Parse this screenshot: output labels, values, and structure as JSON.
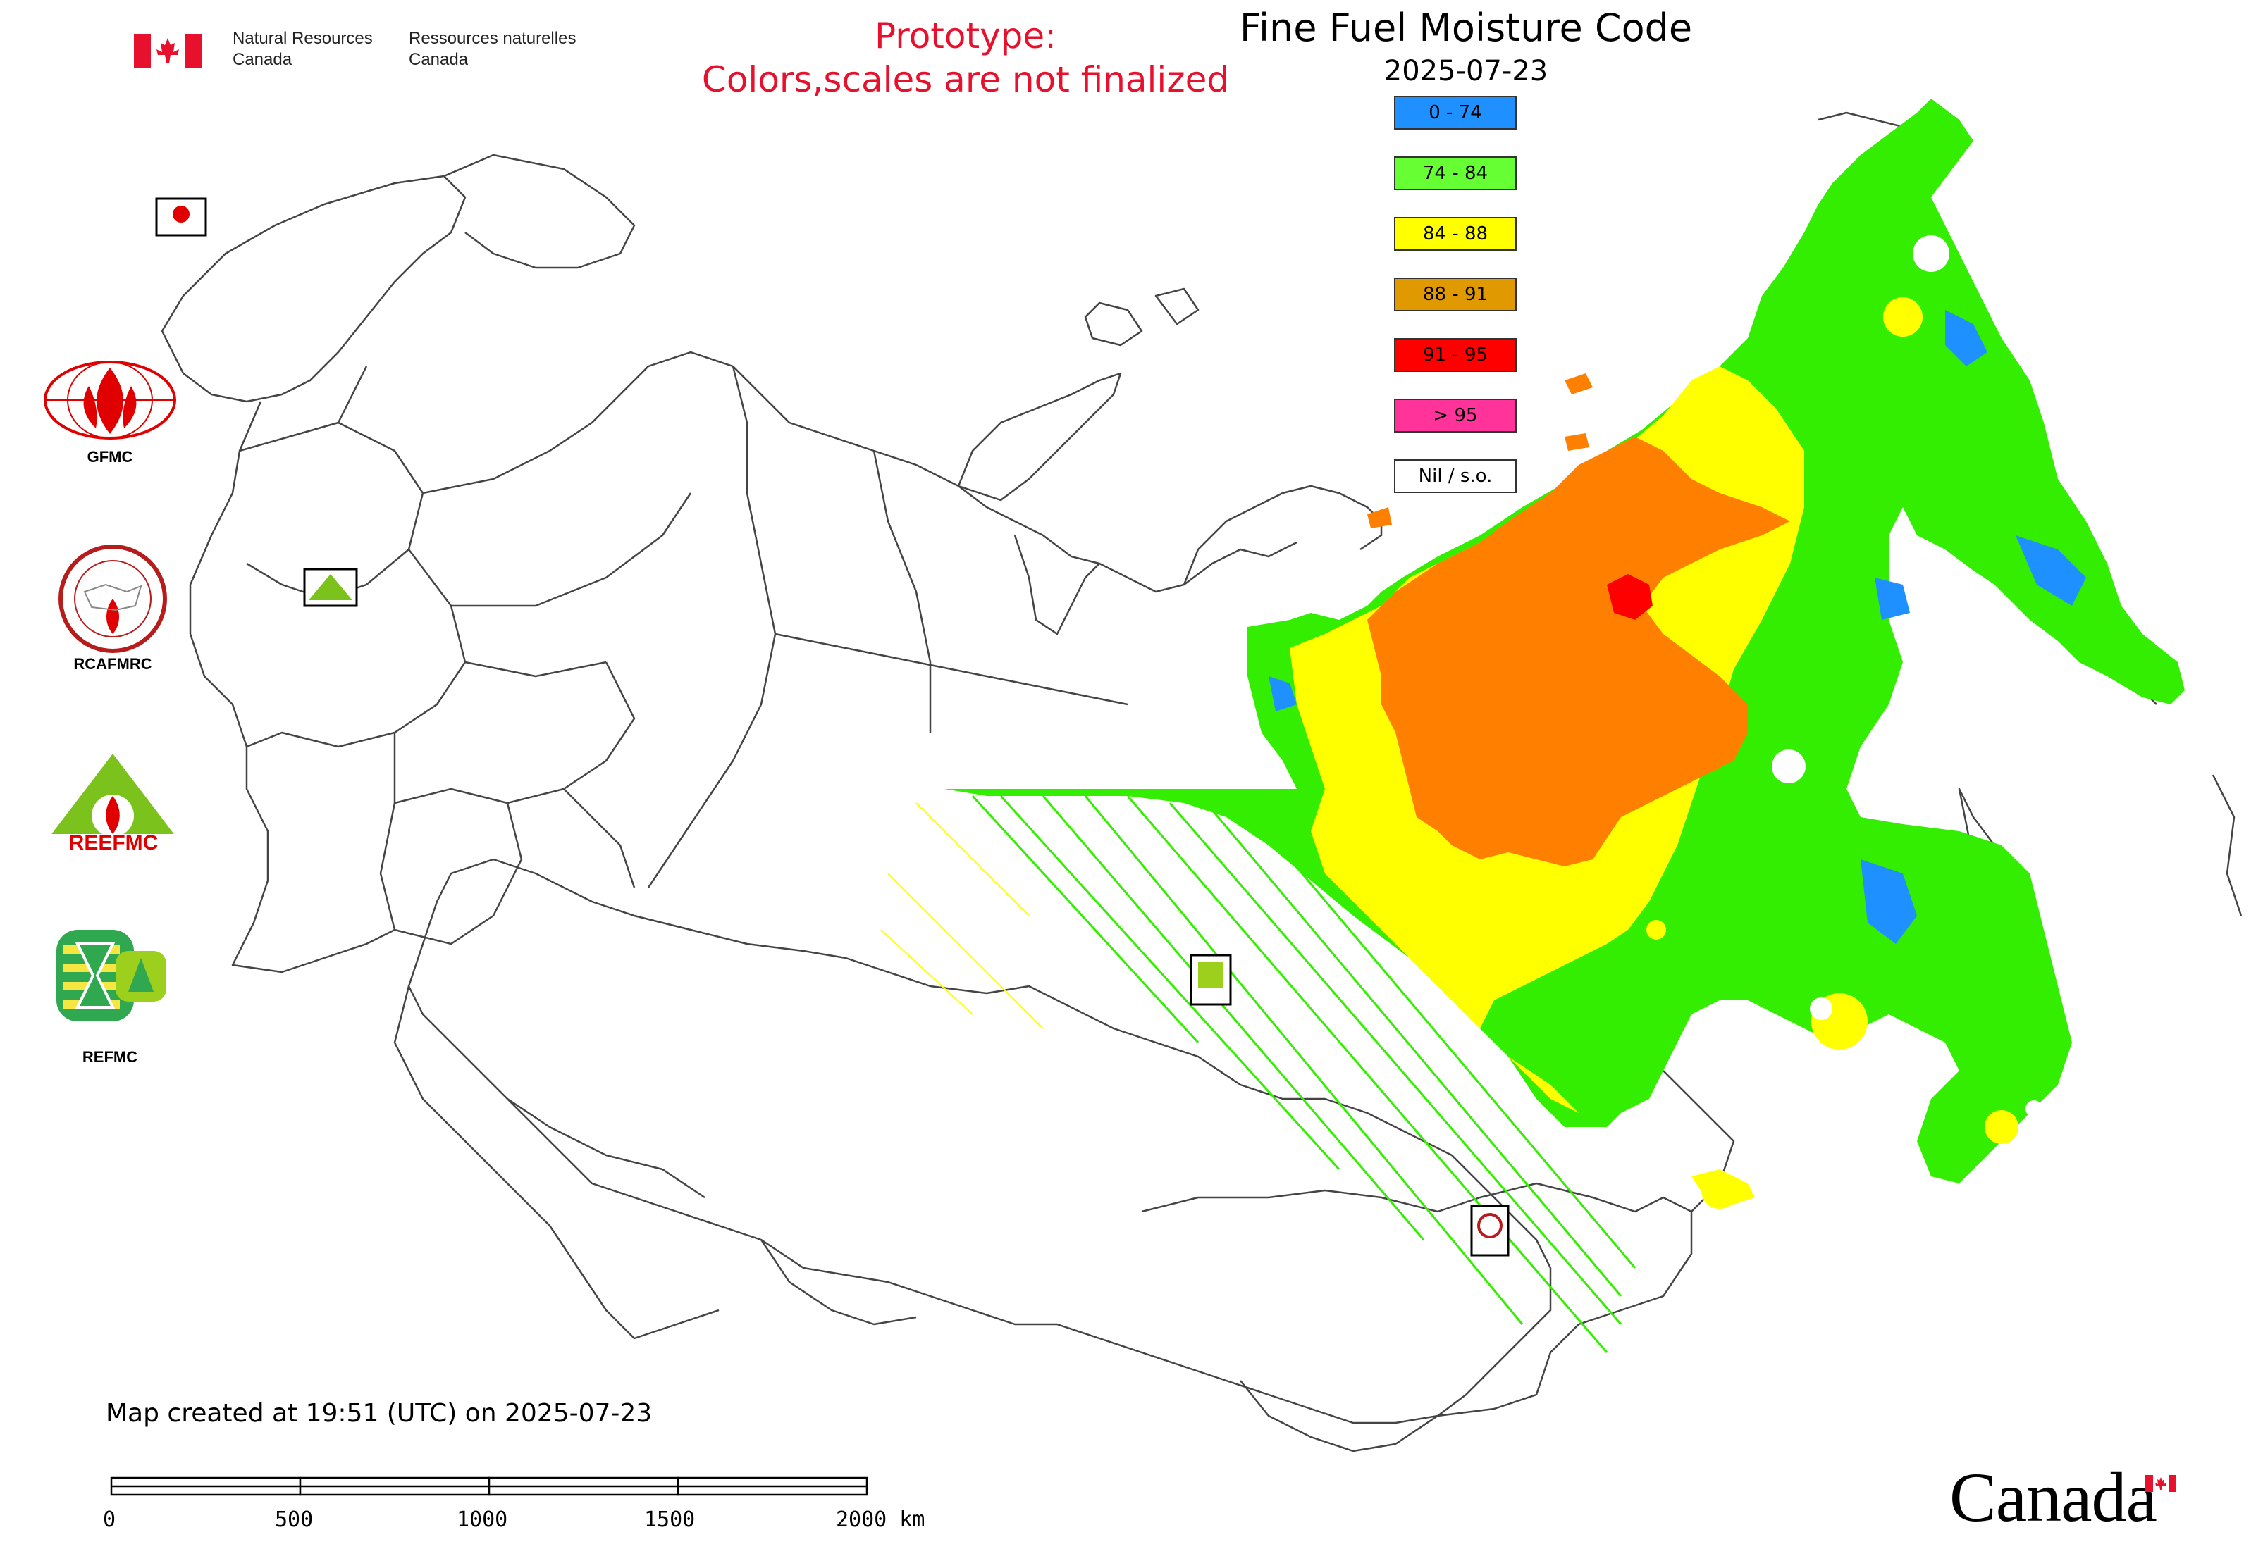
{
  "header": {
    "dept_en_line1": "Natural Resources",
    "dept_en_line2": "Canada",
    "dept_fr_line1": "Ressources naturelles",
    "dept_fr_line2": "Canada"
  },
  "prototype_notice": {
    "line1": "Prototype:",
    "line2": "Colors,scales are not finalized"
  },
  "title": "Fine Fuel Moisture Code",
  "date": "2025-07-23",
  "legend": [
    {
      "label": "0 - 74",
      "color": "#1e90ff"
    },
    {
      "label": "74 - 84",
      "color": "#66ff33"
    },
    {
      "label": "84 - 88",
      "color": "#ffff00"
    },
    {
      "label": "88 - 91",
      "color": "#e09a00"
    },
    {
      "label": "91 - 95",
      "color": "#ff0000"
    },
    {
      "label": "> 95",
      "color": "#ff3399"
    },
    {
      "label": "Nil / s.o.",
      "color": "#ffffff"
    }
  ],
  "logos": {
    "gfmc": "GFMC",
    "rcafmrc": "RCAFMRC",
    "reefmc": "REEFMC",
    "refmc": "REFMC",
    "rcafmrc_badge_text": "RCAFMRC",
    "reefmc_badge_text": "REEFMC"
  },
  "created_text": "Map created at 19:51 (UTC) on 2025-07-23",
  "scale_bar": {
    "labels": [
      "0",
      "500",
      "1000",
      "1500",
      "2000 km"
    ]
  },
  "wordmark": "Canada",
  "colors": {
    "ffmc_green": "#33ee00",
    "ffmc_yellow": "#ffff00",
    "ffmc_orange": "#ff8000",
    "ffmc_red": "#ff0000",
    "ffmc_blue": "#1e90ff",
    "prototype_red": "#e8112d"
  }
}
